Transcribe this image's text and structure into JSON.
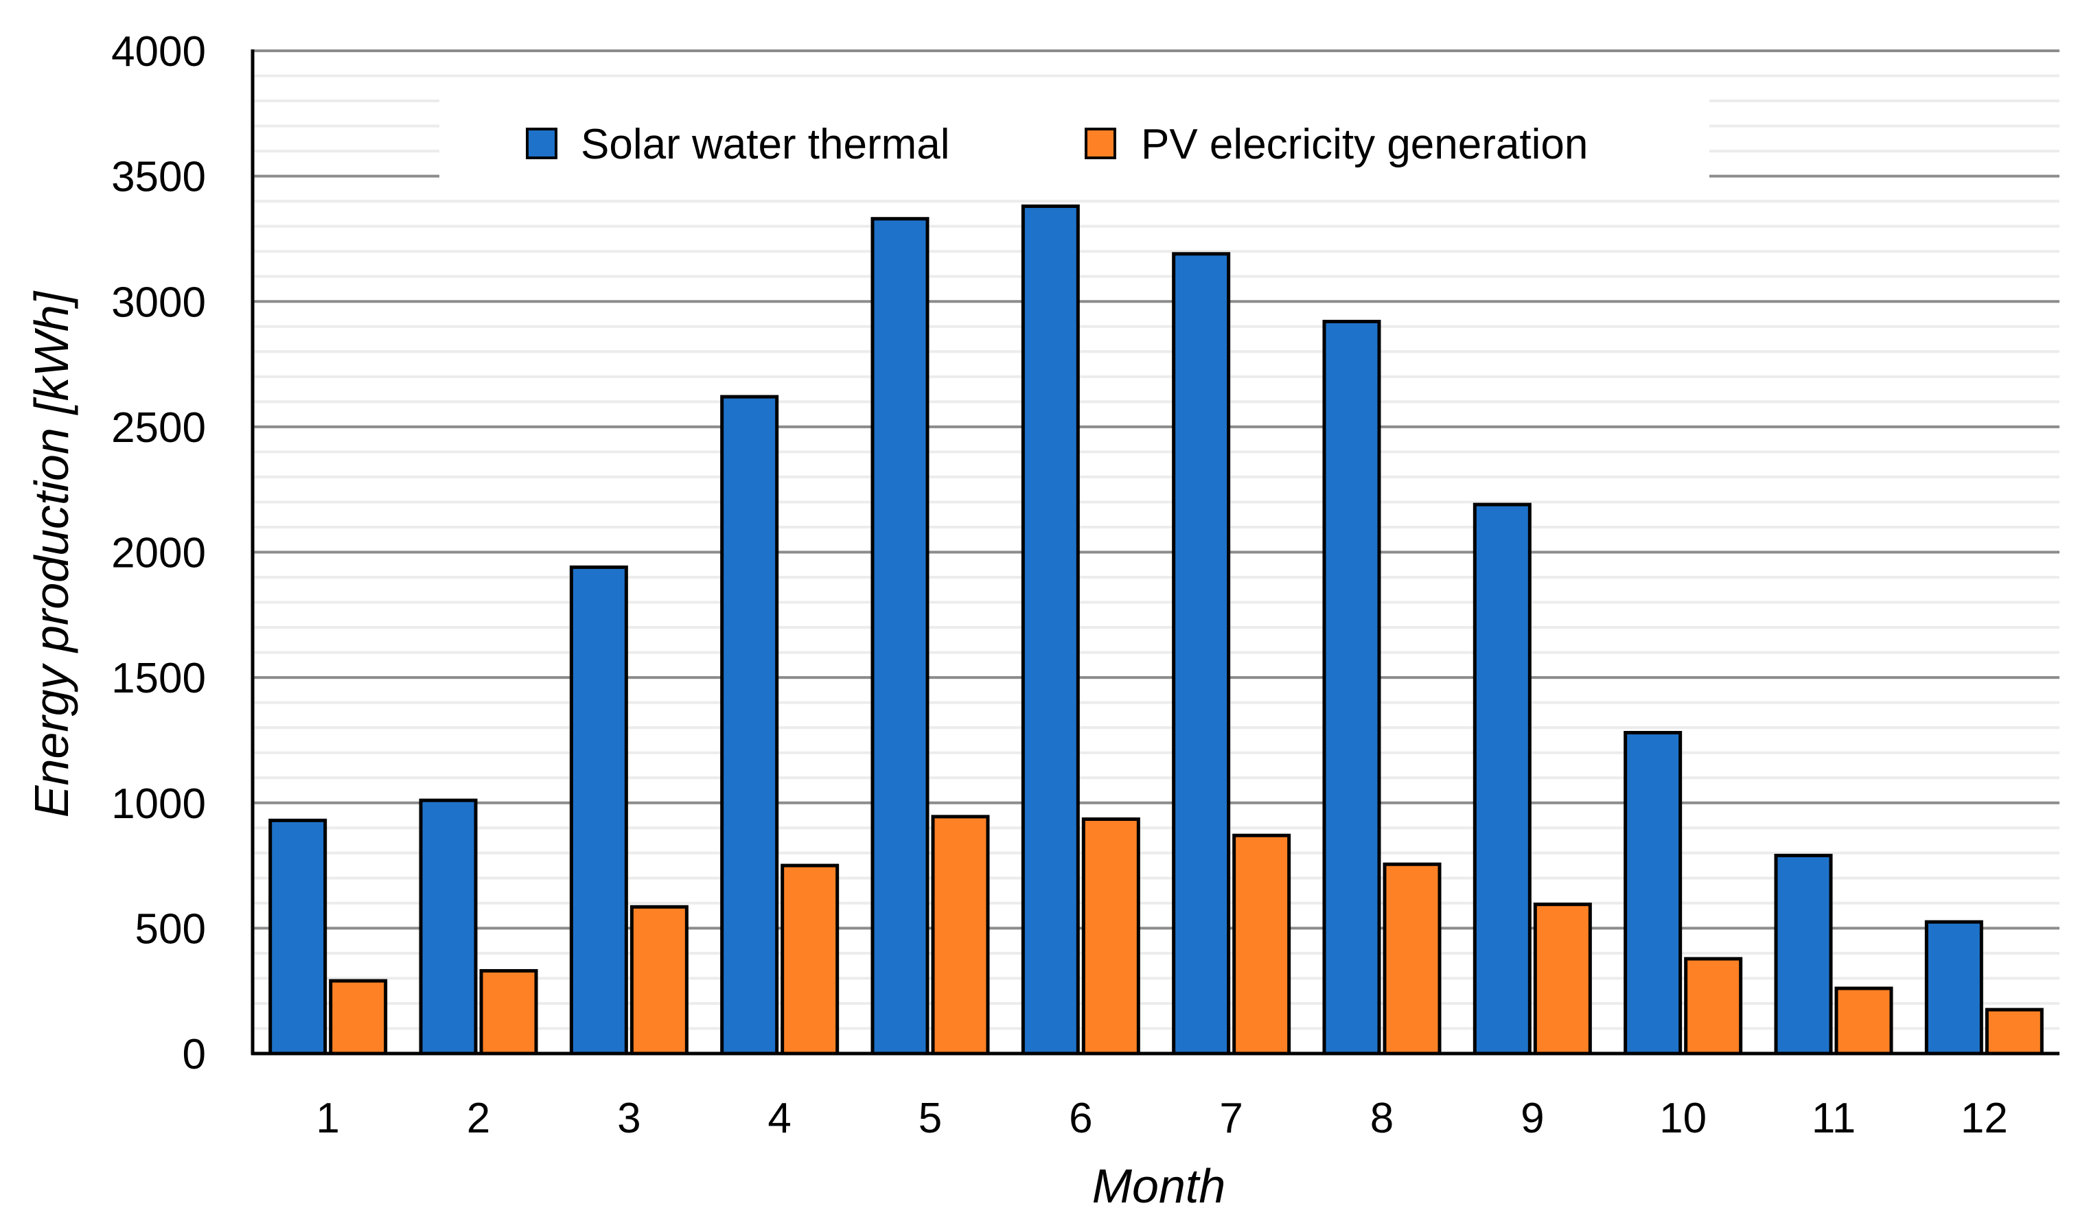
{
  "chart_data": {
    "type": "bar",
    "title": "",
    "xlabel": "Month",
    "ylabel": "Energy production [kWh]",
    "ylim": [
      0,
      4000
    ],
    "yticks": [
      0,
      500,
      1000,
      1500,
      2000,
      2500,
      3000,
      3500,
      4000
    ],
    "minor_grid_step": 100,
    "grid": true,
    "legend_position": "top-center",
    "categories": [
      "1",
      "2",
      "3",
      "4",
      "5",
      "6",
      "7",
      "8",
      "9",
      "10",
      "11",
      "12"
    ],
    "series": [
      {
        "name": "Solar water thermal",
        "color": "#1f72c9",
        "values": [
          930,
          1010,
          1940,
          2620,
          3330,
          3380,
          3190,
          2920,
          2190,
          1280,
          790,
          525
        ]
      },
      {
        "name": "PV elecricity generation",
        "color": "#ff8125",
        "values": [
          290,
          330,
          585,
          750,
          945,
          935,
          870,
          755,
          595,
          378,
          260,
          175
        ]
      }
    ]
  }
}
